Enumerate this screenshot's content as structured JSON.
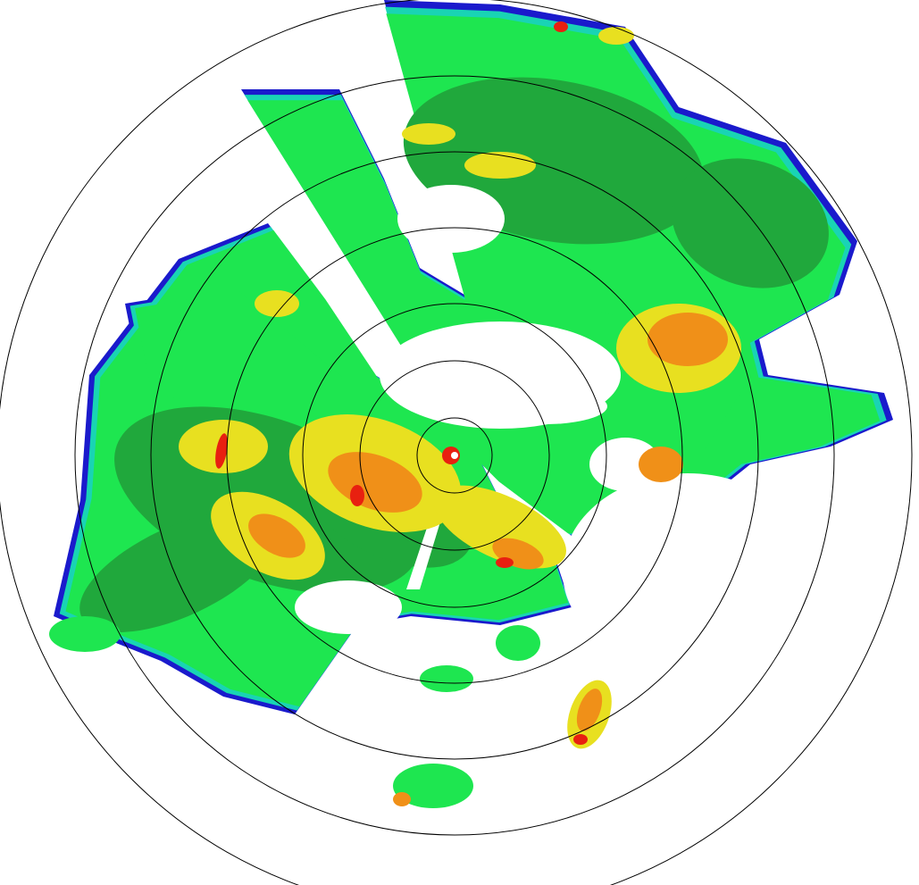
{
  "radar": {
    "range_ring_count": 7,
    "palette": {
      "blue": "#1a1acc",
      "cyan": "#19d4b4",
      "light_green": "#1ee650",
      "dark_green": "#20a83c",
      "yellow": "#e8e020",
      "orange": "#f09018",
      "red": "#e82010",
      "ring": "#000000",
      "background": "#ffffff"
    }
  }
}
